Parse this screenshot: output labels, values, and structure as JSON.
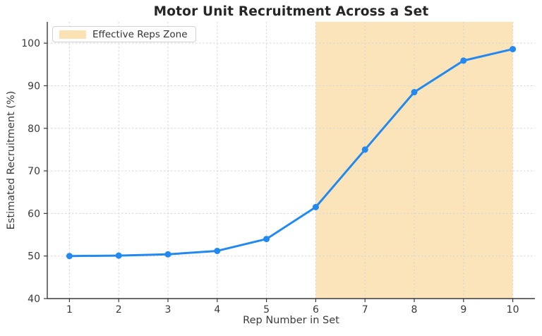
{
  "figure": {
    "background": "#ffffff"
  },
  "chart_data": {
    "type": "line",
    "title": "Motor Unit Recruitment Across a Set",
    "xlabel": "Rep Number in Set",
    "ylabel": "Estimated Recruitment (%)",
    "x": [
      1,
      2,
      3,
      4,
      5,
      6,
      7,
      8,
      9,
      10
    ],
    "y": [
      50.0,
      50.1,
      50.4,
      51.2,
      54.0,
      61.5,
      75.0,
      88.5,
      95.9,
      98.6
    ],
    "xticks": [
      1,
      2,
      3,
      4,
      5,
      6,
      7,
      8,
      9,
      10
    ],
    "yticks": [
      40,
      50,
      60,
      70,
      80,
      90,
      100
    ],
    "xlim": [
      0.55,
      10.45
    ],
    "ylim": [
      40,
      105
    ],
    "grid": true,
    "grid_style": "dashed",
    "line_color": "#2289f0",
    "marker": "circle",
    "shaded_zone": {
      "label": "Effective Reps Zone",
      "x_start": 6,
      "x_end": 10,
      "fill": "#fbe4ba"
    },
    "legend": {
      "position": "upper left",
      "entries": [
        {
          "label": "Effective Reps Zone",
          "swatch": "#fae2b4"
        }
      ]
    }
  },
  "colors": {
    "spine": "#3a3a3a",
    "tick_label": "#3a3a3a",
    "grid": "#d7d7d7",
    "title": "#262626"
  }
}
